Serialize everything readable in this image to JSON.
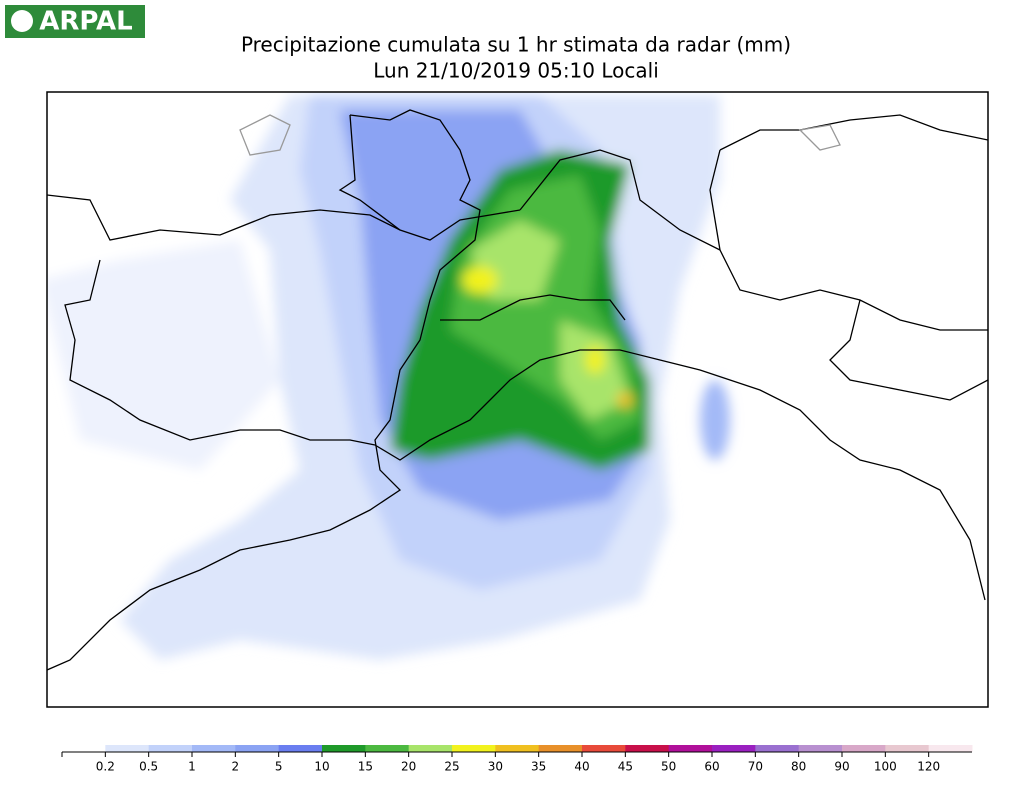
{
  "logo": "ARPAL",
  "title": "Precipitazione cumulata su 1 hr stimata da radar (mm)",
  "subtitle": "Lun 21/10/2019 05:10 Locali",
  "legend": {
    "labels": [
      0.2,
      0.5,
      1,
      2,
      5,
      10,
      15,
      20,
      25,
      30,
      35,
      40,
      45,
      50,
      60,
      70,
      80,
      90,
      100,
      120
    ],
    "colors": [
      "#ffffff",
      "#dde6fb",
      "#c2d2fa",
      "#a3b9f7",
      "#8ba3f3",
      "#6a7ef0",
      "#1f9a2a",
      "#4cb940",
      "#a8e46a",
      "#f2f21e",
      "#f0c020",
      "#e8902a",
      "#e84a3a",
      "#c8104a",
      "#b0109a",
      "#9a20c0",
      "#9a70d0",
      "#b890d0",
      "#d8a8c8",
      "#e8c8d0",
      "#f8e8ee"
    ]
  }
}
